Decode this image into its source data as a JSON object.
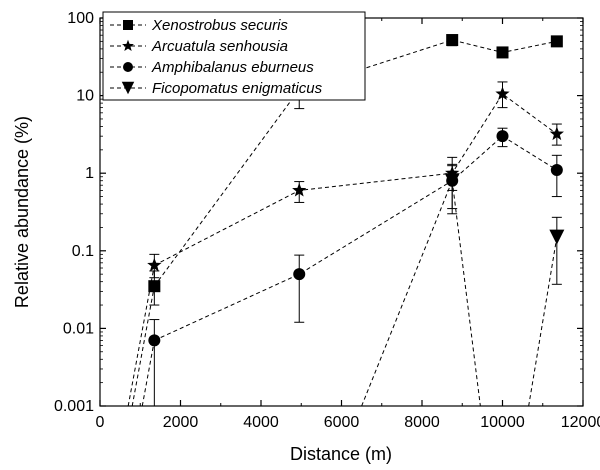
{
  "chart_data": {
    "type": "line",
    "xlabel": "Distance (m)",
    "ylabel": "Relative abundance (%)",
    "xlim": [
      0,
      12000
    ],
    "ylim": [
      0.001,
      100
    ],
    "yscale": "log",
    "x_ticks": [
      0,
      2000,
      4000,
      6000,
      8000,
      10000,
      12000
    ],
    "x_tick_labels": [
      "0",
      "2000",
      "4000",
      "6000",
      "8000",
      "10000",
      "12000"
    ],
    "y_ticks": [
      0.001,
      0.01,
      0.1,
      1,
      10,
      100
    ],
    "y_tick_labels": [
      "0.001",
      "0.01",
      "0.1",
      "1",
      "10",
      "100"
    ],
    "legend_position": "top-left",
    "line_style": "dashed",
    "series": [
      {
        "name": "Xenostrobus securis",
        "marker": "square",
        "x": [
          1350,
          4950,
          8750,
          10000,
          11350
        ],
        "y": [
          0.035,
          12,
          52,
          36,
          50
        ],
        "err_low": [
          0.02,
          6.8,
          44,
          34,
          46
        ],
        "err_high": [
          0.055,
          17,
          60,
          38,
          54
        ],
        "lead_in_x": 800
      },
      {
        "name": "Arcuatula senhousia",
        "marker": "star",
        "x": [
          1350,
          4950,
          8750,
          10000,
          11350
        ],
        "y": [
          0.065,
          0.6,
          1.0,
          10.5,
          3.2
        ],
        "err_low": [
          0.045,
          0.42,
          0.6,
          7,
          2.3
        ],
        "err_high": [
          0.09,
          0.78,
          1.6,
          15,
          4.3
        ],
        "lead_in_x": 700
      },
      {
        "name": "Amphibalanus eburneus",
        "marker": "circle",
        "x": [
          1350,
          4950,
          8750,
          10000,
          11350
        ],
        "y": [
          0.007,
          0.05,
          0.8,
          3.0,
          1.1
        ],
        "err_low": [
          0.001,
          0.012,
          0.3,
          2.2,
          0.5
        ],
        "err_high": [
          0.013,
          0.088,
          1.3,
          3.8,
          1.7
        ],
        "lead_in_x": 1050
      },
      {
        "name": "Ficopomatus enigmaticus",
        "marker": "triangle-down",
        "x": [
          8750,
          11350
        ],
        "y": [
          0.8,
          0.15
        ],
        "err_low": [
          0.35,
          0.037
        ],
        "err_high": [
          1.25,
          0.27
        ],
        "segments_to_axis": [
          [
            6500,
            8750
          ],
          [
            8750,
            9450
          ],
          [
            10650,
            11350
          ]
        ]
      }
    ]
  }
}
